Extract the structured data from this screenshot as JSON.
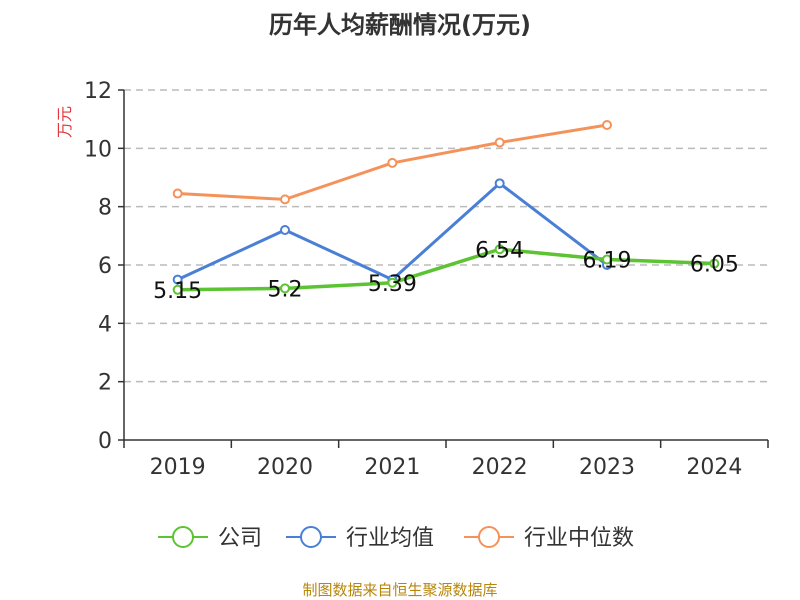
{
  "chart_data": {
    "type": "line",
    "title": "历年人均薪酬情况(万元)",
    "ylabel": "万元",
    "xlabel": "",
    "categories": [
      "2019",
      "2020",
      "2021",
      "2022",
      "2023",
      "2024"
    ],
    "ylim": [
      0,
      12
    ],
    "yticks": [
      0,
      2,
      4,
      6,
      8,
      10,
      12
    ],
    "grid": true,
    "legend_position": "bottom",
    "series": [
      {
        "name": "公司",
        "color": "#5cc433",
        "values": [
          5.15,
          5.2,
          5.39,
          6.54,
          6.19,
          6.05
        ],
        "labels": [
          "5.15",
          "5.2",
          "5.39",
          "6.54",
          "6.19",
          "6.05"
        ]
      },
      {
        "name": "行业均值",
        "color": "#4a7fd6",
        "values": [
          5.5,
          7.2,
          5.5,
          8.8,
          6.0,
          null
        ]
      },
      {
        "name": "行业中位数",
        "color": "#f5925a",
        "values": [
          8.45,
          8.25,
          9.5,
          10.2,
          10.8,
          null
        ]
      }
    ],
    "source": "制图数据来自恒生聚源数据库"
  }
}
